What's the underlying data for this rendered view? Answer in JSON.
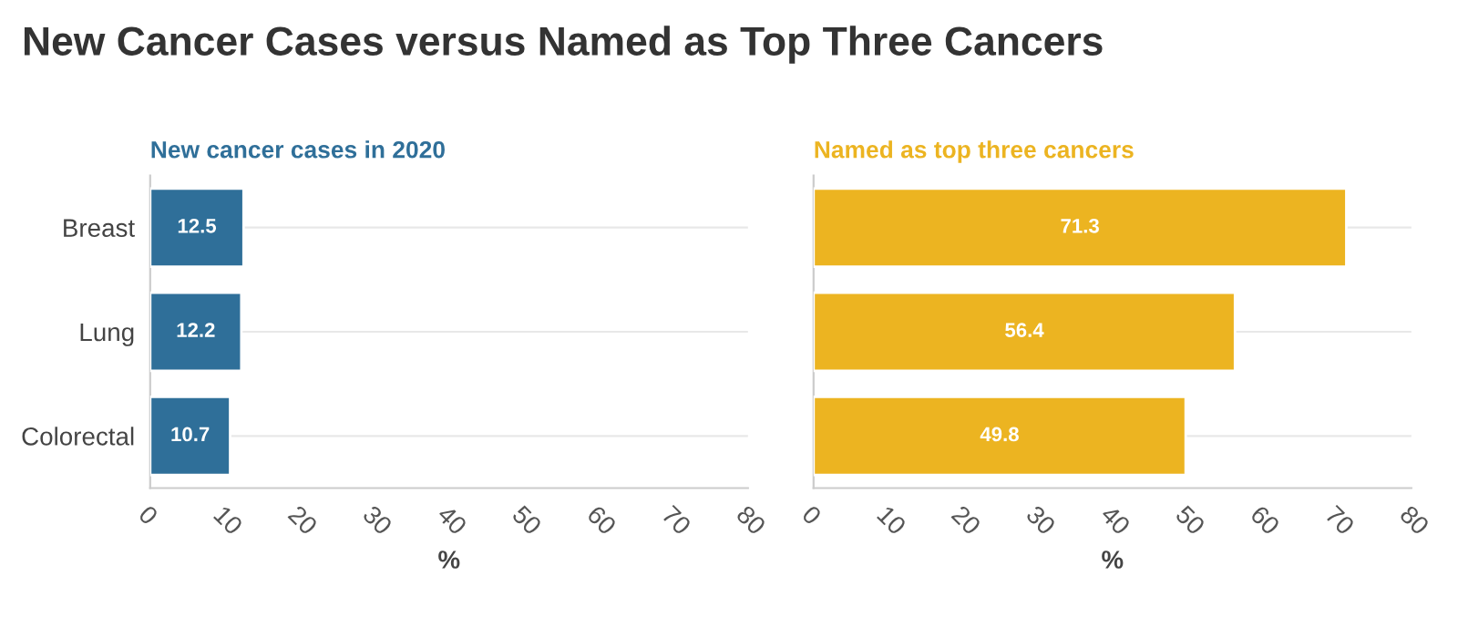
{
  "chart_data": [
    {
      "type": "bar",
      "orientation": "horizontal",
      "title": "New Cancer Cases versus Named as Top Three Cancers",
      "subtitle": "New cancer cases in 2020",
      "xlabel": "%",
      "categories": [
        "Breast",
        "Lung",
        "Colorectal"
      ],
      "values": [
        12.5,
        12.2,
        10.7
      ],
      "color": "#2f6f99",
      "xlim": [
        0,
        80
      ],
      "xticks": [
        0,
        10,
        20,
        30,
        40,
        50,
        60,
        70,
        80
      ],
      "grid": "y",
      "data_labels": true
    },
    {
      "type": "bar",
      "orientation": "horizontal",
      "subtitle": "Named as top three cancers",
      "xlabel": "%",
      "categories": [
        null,
        null,
        null
      ],
      "values": [
        71.3,
        56.4,
        49.8
      ],
      "color": "#ecb421",
      "xlim": [
        0,
        80
      ],
      "xticks": [
        0,
        10,
        20,
        30,
        40,
        50,
        60,
        70,
        80
      ],
      "grid": "y",
      "data_labels": true
    }
  ]
}
